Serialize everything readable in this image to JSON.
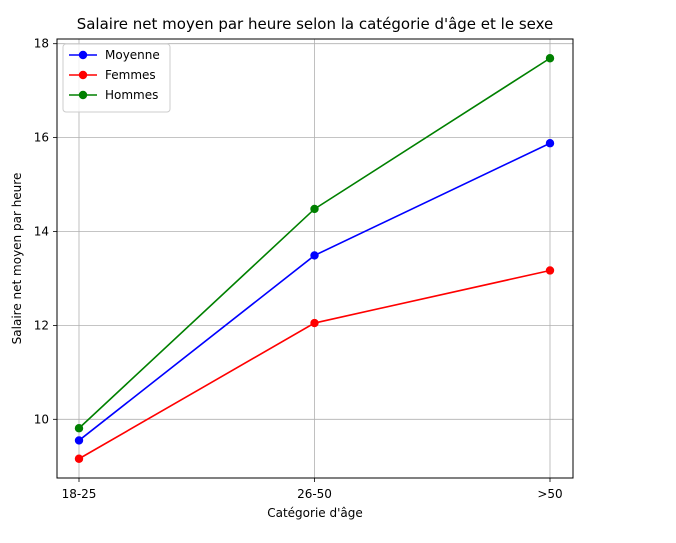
{
  "chart_data": {
    "type": "line",
    "title": "Salaire net moyen par heure selon la catégorie d'âge et le sexe",
    "xlabel": "Catégorie d'âge",
    "ylabel": "Salaire net moyen par heure",
    "categories": [
      "18-25",
      "26-50",
      ">50"
    ],
    "series": [
      {
        "name": "Moyenne",
        "color": "#0000ff",
        "values": [
          9.55,
          13.49,
          15.88
        ]
      },
      {
        "name": "Femmes",
        "color": "#ff0000",
        "values": [
          9.16,
          12.05,
          13.17
        ]
      },
      {
        "name": "Hommes",
        "color": "#008000",
        "values": [
          9.81,
          14.48,
          17.69
        ]
      }
    ],
    "ylim": [
      8.75,
      18.1
    ],
    "yticks": [
      10,
      12,
      14,
      16,
      18
    ],
    "ytick_labels": [
      "10",
      "12",
      "14",
      "16",
      "18"
    ],
    "grid": true,
    "legend_position": "top-left",
    "marker": "circle"
  }
}
